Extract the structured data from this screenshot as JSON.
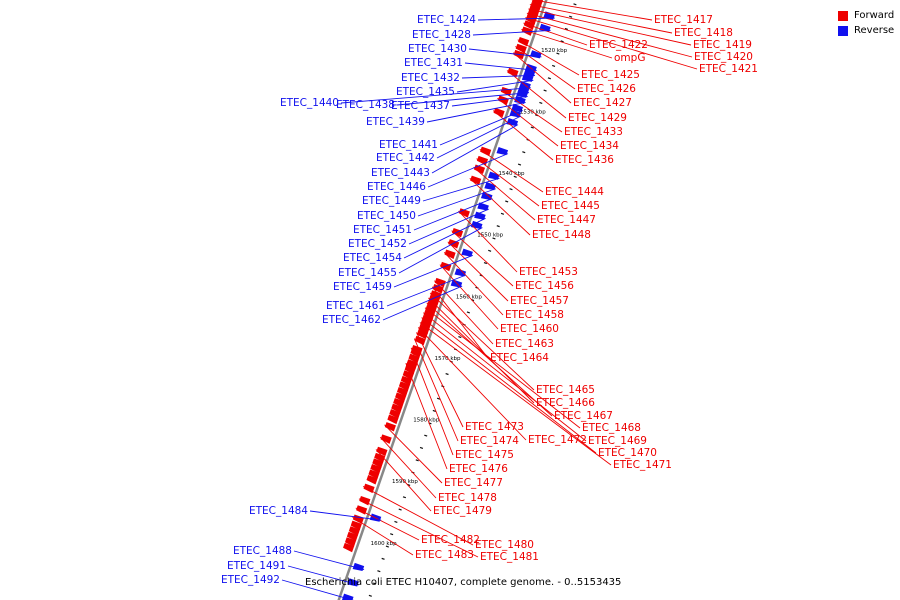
{
  "colors": {
    "forward": "#ee0000",
    "reverse": "#1111ee",
    "axis": "#888888",
    "tick": "#111111"
  },
  "legend": {
    "forward": "Forward",
    "reverse": "Reverse"
  },
  "caption": "Escherichia coli ETEC H10407, complete genome. - 0..5153435",
  "scale": {
    "kbp_start": 1513,
    "kbp_end": 1612,
    "labels": [
      "1520 kbp",
      "1530 kbp",
      "1540 kbp",
      "1550 kbp",
      "1560 kbp",
      "1570 kbp",
      "1580 kbp",
      "1590 kbp",
      "1600 kbp"
    ]
  },
  "forward_genes": [
    {
      "label": "ETEC_1417",
      "kbp": 1514.0
    },
    {
      "label": "ETEC_1418",
      "kbp": 1514.8
    },
    {
      "label": "ETEC_1419",
      "kbp": 1515.5
    },
    {
      "label": "ETEC_1420",
      "kbp": 1516.2
    },
    {
      "label": "ETEC_1421",
      "kbp": 1516.9
    },
    {
      "label": "ETEC_1422",
      "kbp": 1517.8
    },
    {
      "label": "ompG",
      "kbp": 1518.8
    },
    {
      "label": "ETEC_1425",
      "kbp": 1520.5
    },
    {
      "label": "ETEC_1426",
      "kbp": 1521.6
    },
    {
      "label": "ETEC_1427",
      "kbp": 1522.6
    },
    {
      "label": "ETEC_1429",
      "kbp": 1525.5
    },
    {
      "label": "ETEC_1433",
      "kbp": 1528.6
    },
    {
      "label": "ETEC_1434",
      "kbp": 1530.0
    },
    {
      "label": "ETEC_1436",
      "kbp": 1532.0
    },
    {
      "label": "ETEC_1444",
      "kbp": 1538.3
    },
    {
      "label": "ETEC_1445",
      "kbp": 1539.8
    },
    {
      "label": "ETEC_1447",
      "kbp": 1541.2
    },
    {
      "label": "ETEC_1448",
      "kbp": 1543.0
    },
    {
      "label": "ETEC_1453",
      "kbp": 1548.3
    },
    {
      "label": "ETEC_1456",
      "kbp": 1551.5
    },
    {
      "label": "ETEC_1457",
      "kbp": 1553.3
    },
    {
      "label": "ETEC_1458",
      "kbp": 1555.0
    },
    {
      "label": "ETEC_1460",
      "kbp": 1557.0
    },
    {
      "label": "ETEC_1463",
      "kbp": 1559.6
    },
    {
      "label": "ETEC_1464",
      "kbp": 1560.6
    },
    {
      "label": "ETEC_1465",
      "kbp": 1561.6
    },
    {
      "label": "ETEC_1466",
      "kbp": 1562.4
    },
    {
      "label": "ETEC_1467",
      "kbp": 1563.2
    },
    {
      "label": "ETEC_1468",
      "kbp": 1564.0
    },
    {
      "label": "ETEC_1469",
      "kbp": 1564.8
    },
    {
      "label": "ETEC_1470",
      "kbp": 1565.6
    },
    {
      "label": "ETEC_1471",
      "kbp": 1566.4
    },
    {
      "label": "ETEC_1472",
      "kbp": 1567.2
    },
    {
      "label": "ETEC_1473",
      "kbp": 1568.0
    },
    {
      "label": "ETEC_1474",
      "kbp": 1569.0
    },
    {
      "label": "ETEC_1475",
      "kbp": 1570.5
    },
    {
      "label": "ETEC_1476",
      "kbp": 1573.0
    },
    {
      "label": "ETEC_1477",
      "kbp": 1583.0
    },
    {
      "label": "ETEC_1478",
      "kbp": 1585.0
    },
    {
      "label": "ETEC_1479",
      "kbp": 1587.0
    },
    {
      "label": "ETEC_1480",
      "kbp": 1593.0
    },
    {
      "label": "ETEC_1481",
      "kbp": 1595.0
    },
    {
      "label": "ETEC_1482",
      "kbp": 1596.5
    },
    {
      "label": "ETEC_1483",
      "kbp": 1598.0
    }
  ],
  "reverse_genes": [
    {
      "label": "ETEC_1424",
      "kbp": 1515.5
    },
    {
      "label": "ETEC_1428",
      "kbp": 1517.5
    },
    {
      "label": "ETEC_1430",
      "kbp": 1521.8
    },
    {
      "label": "ETEC_1431",
      "kbp": 1524.0
    },
    {
      "label": "ETEC_1432",
      "kbp": 1524.8
    },
    {
      "label": "ETEC_1435",
      "kbp": 1525.6
    },
    {
      "label": "ETEC_1440",
      "kbp": 1526.8
    },
    {
      "label": "ETEC_1438",
      "kbp": 1527.6
    },
    {
      "label": "ETEC_1437",
      "kbp": 1528.2
    },
    {
      "label": "ETEC_1439",
      "kbp": 1529.2
    },
    {
      "label": "ETEC_1441",
      "kbp": 1530.5
    },
    {
      "label": "ETEC_1442",
      "kbp": 1531.4
    },
    {
      "label": "ETEC_1443",
      "kbp": 1532.8
    },
    {
      "label": "ETEC_1446",
      "kbp": 1537.5
    },
    {
      "label": "ETEC_1449",
      "kbp": 1541.5
    },
    {
      "label": "ETEC_1450",
      "kbp": 1543.2
    },
    {
      "label": "ETEC_1451",
      "kbp": 1544.8
    },
    {
      "label": "ETEC_1452",
      "kbp": 1546.5
    },
    {
      "label": "ETEC_1454",
      "kbp": 1548.0
    },
    {
      "label": "ETEC_1455",
      "kbp": 1549.5
    },
    {
      "label": "ETEC_1459",
      "kbp": 1554.0
    },
    {
      "label": "ETEC_1461",
      "kbp": 1557.2
    },
    {
      "label": "ETEC_1462",
      "kbp": 1559.0
    },
    {
      "label": "ETEC_1484",
      "kbp": 1597.0
    },
    {
      "label": "ETEC_1488",
      "kbp": 1605.0
    },
    {
      "label": "ETEC_1491",
      "kbp": 1607.5
    },
    {
      "label": "ETEC_1492",
      "kbp": 1610.0
    }
  ]
}
